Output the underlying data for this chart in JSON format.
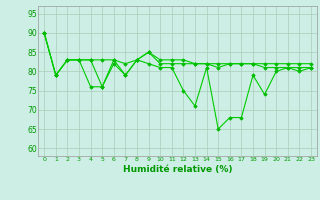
{
  "xlabel": "Humidité relative (%)",
  "x": [
    0,
    1,
    2,
    3,
    4,
    5,
    6,
    7,
    8,
    9,
    10,
    11,
    12,
    13,
    14,
    15,
    16,
    17,
    18,
    19,
    20,
    21,
    22,
    23
  ],
  "series": [
    [
      90,
      79,
      83,
      83,
      83,
      76,
      82,
      79,
      83,
      85,
      82,
      82,
      82,
      82,
      82,
      81,
      82,
      82,
      82,
      82,
      82,
      82,
      82,
      82
    ],
    [
      90,
      79,
      83,
      83,
      76,
      76,
      83,
      79,
      83,
      82,
      81,
      81,
      75,
      71,
      81,
      65,
      68,
      68,
      79,
      74,
      80,
      81,
      80,
      81
    ],
    [
      90,
      79,
      83,
      83,
      83,
      83,
      83,
      82,
      83,
      85,
      83,
      83,
      83,
      82,
      82,
      82,
      82,
      82,
      82,
      81,
      81,
      81,
      81,
      81
    ]
  ],
  "line_color": "#00cc00",
  "marker_color": "#00bb00",
  "bg_color": "#cceee4",
  "grid_color": "#aaccbb",
  "text_color": "#009900",
  "ylim": [
    58,
    97
  ],
  "yticks": [
    60,
    65,
    70,
    75,
    80,
    85,
    90,
    95
  ],
  "figsize": [
    3.2,
    2.0
  ],
  "dpi": 100
}
